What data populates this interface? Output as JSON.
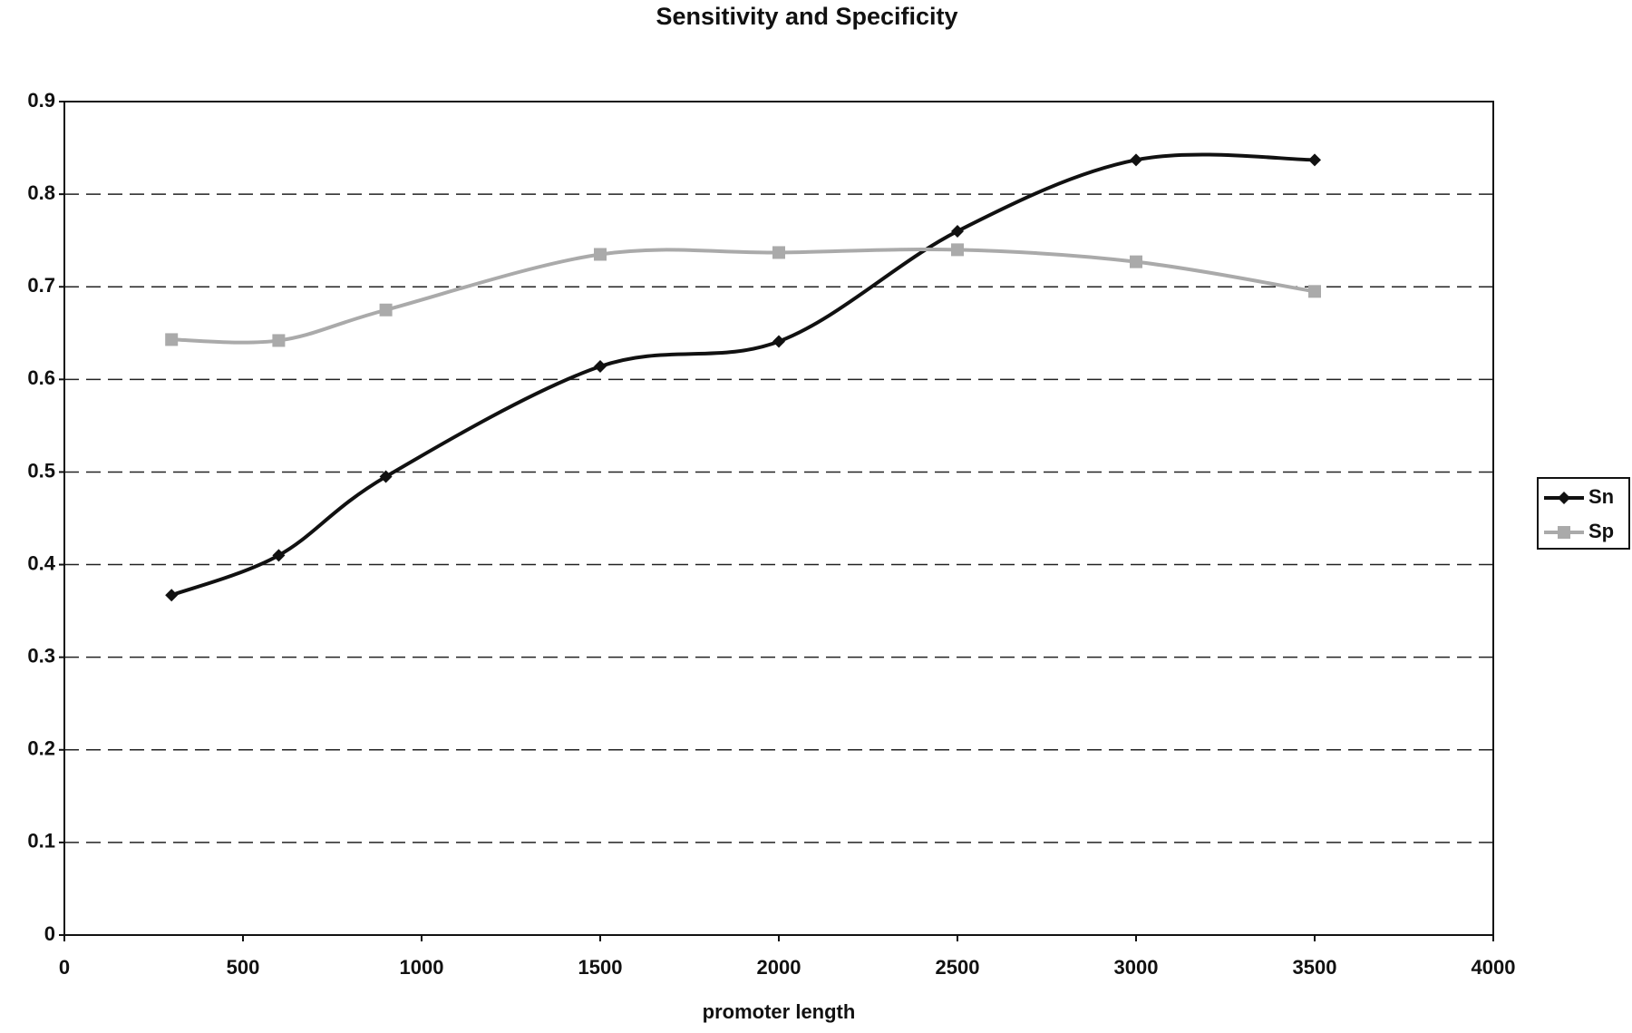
{
  "chart_data": {
    "type": "line",
    "title": "Sensitivity and Specificity",
    "x_label": "promoter length",
    "x": [
      300,
      600,
      900,
      1500,
      2000,
      2500,
      3000,
      3500
    ],
    "series": [
      {
        "name": "Sn",
        "color": "#111111",
        "marker": "diamond",
        "values": [
          0.367,
          0.41,
          0.495,
          0.614,
          0.641,
          0.76,
          0.837,
          0.837
        ]
      },
      {
        "name": "Sp",
        "color": "#aaaaaa",
        "marker": "square",
        "values": [
          0.643,
          0.642,
          0.675,
          0.735,
          0.737,
          0.74,
          0.727,
          0.695
        ]
      }
    ],
    "xlim": [
      0,
      4000
    ],
    "xticks": [
      0,
      500,
      1000,
      1500,
      2000,
      2500,
      3000,
      3500,
      4000
    ],
    "ylim": [
      0,
      0.9
    ],
    "yticks": [
      0,
      0.1,
      0.2,
      0.3,
      0.4,
      0.5,
      0.6,
      0.7,
      0.8,
      0.9
    ],
    "grid": true,
    "legend": "right"
  }
}
